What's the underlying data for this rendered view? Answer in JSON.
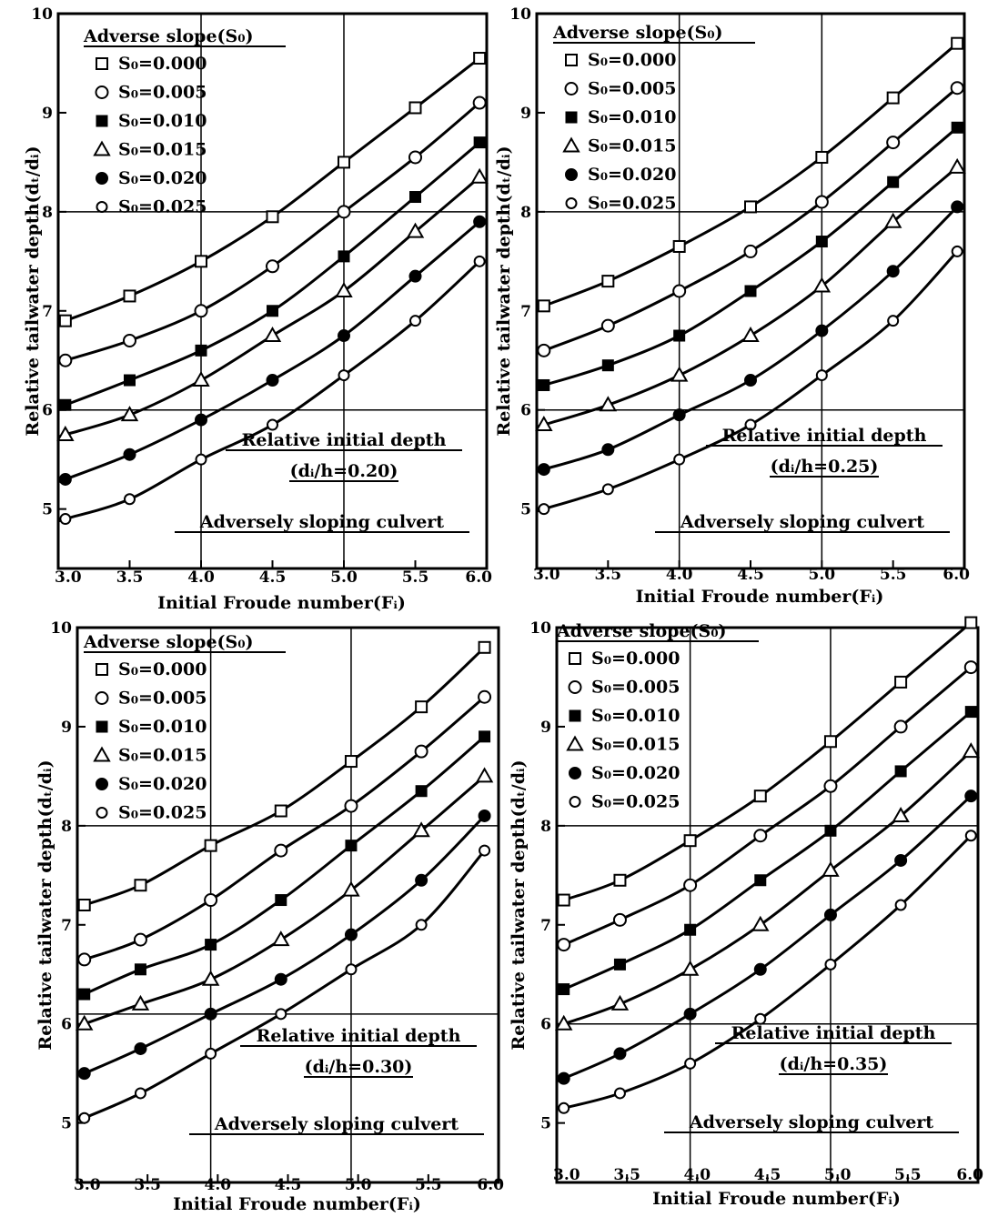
{
  "chart_data": [
    {
      "type": "line",
      "legend_title": "Adverse slope(S₀)",
      "legend_placement": "top-left",
      "box_title": "Relative initial depth",
      "box_subtitle": "(dᵢ/h=0.20)",
      "footer": "Adversely sloping culvert",
      "xlabel": "Initial Froude number(Fᵢ)",
      "ylabel": "Relative tailwater depth(dₜ/dᵢ)",
      "xlim": [
        3.0,
        6.0
      ],
      "ylim": [
        4.4,
        10.0
      ],
      "xticks": [
        "3.0",
        "3.5",
        "4.0",
        "4.5",
        "5.0",
        "5.5",
        "6.0"
      ],
      "yticks": [
        "5",
        "6",
        "7",
        "8",
        "9",
        "10"
      ],
      "grid": {
        "vertical": [
          4.0,
          5.0
        ],
        "horizontal": [
          6.0,
          8.0
        ]
      },
      "x": [
        3.05,
        3.5,
        4.0,
        4.5,
        5.0,
        5.5,
        5.95
      ],
      "series": [
        {
          "name": "S₀=0.000",
          "marker": "square-open",
          "values": [
            6.9,
            7.15,
            7.5,
            7.95,
            8.5,
            9.05,
            9.55
          ]
        },
        {
          "name": "S₀=0.005",
          "marker": "circle-open",
          "values": [
            6.5,
            6.7,
            7.0,
            7.45,
            8.0,
            8.55,
            9.1
          ]
        },
        {
          "name": "S₀=0.010",
          "marker": "square-filled",
          "values": [
            6.05,
            6.3,
            6.6,
            7.0,
            7.55,
            8.15,
            8.7
          ]
        },
        {
          "name": "S₀=0.015",
          "marker": "triangle-open",
          "values": [
            5.75,
            5.95,
            6.3,
            6.75,
            7.2,
            7.8,
            8.35
          ]
        },
        {
          "name": "S₀=0.020",
          "marker": "circle-filled",
          "values": [
            5.3,
            5.55,
            5.9,
            6.3,
            6.75,
            7.35,
            7.9
          ]
        },
        {
          "name": "S₀=0.025",
          "marker": "circle-open-small",
          "values": [
            4.9,
            5.1,
            5.5,
            5.85,
            6.35,
            6.9,
            7.5
          ]
        }
      ]
    },
    {
      "type": "line",
      "legend_title": "Adverse slope(S₀)",
      "legend_placement": "top-left",
      "box_title": "Relative initial depth",
      "box_subtitle": "(dᵢ/h=0.25)",
      "footer": "Adversely sloping culvert",
      "xlabel": "Initial Froude number(Fᵢ)",
      "ylabel": "Relative tailwater depth(dₜ/dᵢ)",
      "xlim": [
        3.0,
        6.0
      ],
      "ylim": [
        4.4,
        10.0
      ],
      "xticks": [
        "3.0",
        "3.5",
        "4.0",
        "4.5",
        "5.0",
        "5.5",
        "6.0"
      ],
      "yticks": [
        "5",
        "6",
        "7",
        "8",
        "9",
        "10"
      ],
      "grid": {
        "vertical": [
          4.0,
          5.0
        ],
        "horizontal": [
          6.0,
          8.0
        ]
      },
      "x": [
        3.05,
        3.5,
        4.0,
        4.5,
        5.0,
        5.5,
        5.95
      ],
      "series": [
        {
          "name": "S₀=0.000",
          "marker": "square-open",
          "values": [
            7.05,
            7.3,
            7.65,
            8.05,
            8.55,
            9.15,
            9.7
          ]
        },
        {
          "name": "S₀=0.005",
          "marker": "circle-open",
          "values": [
            6.6,
            6.85,
            7.2,
            7.6,
            8.1,
            8.7,
            9.25
          ]
        },
        {
          "name": "S₀=0.010",
          "marker": "square-filled",
          "values": [
            6.25,
            6.45,
            6.75,
            7.2,
            7.7,
            8.3,
            8.85
          ]
        },
        {
          "name": "S₀=0.015",
          "marker": "triangle-open",
          "values": [
            5.85,
            6.05,
            6.35,
            6.75,
            7.25,
            7.9,
            8.45
          ]
        },
        {
          "name": "S₀=0.020",
          "marker": "circle-filled",
          "values": [
            5.4,
            5.6,
            5.95,
            6.3,
            6.8,
            7.4,
            8.05
          ]
        },
        {
          "name": "S₀=0.025",
          "marker": "circle-open-small",
          "values": [
            5.0,
            5.2,
            5.5,
            5.85,
            6.35,
            6.9,
            7.6
          ]
        }
      ]
    },
    {
      "type": "line",
      "legend_title": "Adverse slope(S₀)",
      "legend_placement": "top-left",
      "box_title": "Relative initial depth",
      "box_subtitle": "(dᵢ/h=0.30)",
      "footer": "Adversely sloping culvert",
      "xlabel": "Initial Froude number(Fᵢ)",
      "ylabel": "Relative tailwater depth(dₜ/dᵢ)",
      "xlim": [
        3.0,
        6.0
      ],
      "ylim": [
        4.4,
        10.0
      ],
      "xticks": [
        "3.0",
        "3.5",
        "4.0",
        "4.5",
        "5.0",
        "5.5",
        "6.0"
      ],
      "yticks": [
        "5",
        "6",
        "7",
        "8",
        "9",
        "10"
      ],
      "grid": {
        "vertical": [
          3.95,
          4.95
        ],
        "horizontal": [
          6.1,
          8.0
        ]
      },
      "x": [
        3.05,
        3.45,
        3.95,
        4.45,
        4.95,
        5.45,
        5.9
      ],
      "series": [
        {
          "name": "S₀=0.000",
          "marker": "square-open",
          "values": [
            7.2,
            7.4,
            7.8,
            8.15,
            8.65,
            9.2,
            9.8
          ]
        },
        {
          "name": "S₀=0.005",
          "marker": "circle-open",
          "values": [
            6.65,
            6.85,
            7.25,
            7.75,
            8.2,
            8.75,
            9.3
          ]
        },
        {
          "name": "S₀=0.010",
          "marker": "square-filled",
          "values": [
            6.3,
            6.55,
            6.8,
            7.25,
            7.8,
            8.35,
            8.9
          ]
        },
        {
          "name": "S₀=0.015",
          "marker": "triangle-open",
          "values": [
            6.0,
            6.2,
            6.45,
            6.85,
            7.35,
            7.95,
            8.5
          ]
        },
        {
          "name": "S₀=0.020",
          "marker": "circle-filled",
          "values": [
            5.5,
            5.75,
            6.1,
            6.45,
            6.9,
            7.45,
            8.1
          ]
        },
        {
          "name": "S₀=0.025",
          "marker": "circle-open-small",
          "values": [
            5.05,
            5.3,
            5.7,
            6.1,
            6.55,
            7.0,
            7.75
          ]
        }
      ]
    },
    {
      "type": "line",
      "legend_title": "Adverse slope(S₀)",
      "legend_placement": "top-left",
      "box_title": "Relative initial depth",
      "box_subtitle": "(dᵢ/h=0.35)",
      "footer": "Adversely sloping culvert",
      "xlabel": "Initial Froude number(Fᵢ)",
      "ylabel": "Relative tailwater depth(dₜ/dᵢ)",
      "xlim": [
        3.0,
        6.0
      ],
      "ylim": [
        4.4,
        10.0
      ],
      "xticks": [
        "3.0",
        "3.5",
        "4.0",
        "4.5",
        "5.0",
        "5.5",
        "6.0"
      ],
      "yticks": [
        "5",
        "6",
        "7",
        "8",
        "9",
        "10"
      ],
      "grid": {
        "vertical": [
          3.95,
          4.95
        ],
        "horizontal": [
          6.0,
          8.0
        ]
      },
      "x": [
        3.05,
        3.45,
        3.95,
        4.45,
        4.95,
        5.45,
        5.95
      ],
      "series": [
        {
          "name": "S₀=0.000",
          "marker": "square-open",
          "values": [
            7.25,
            7.45,
            7.85,
            8.3,
            8.85,
            9.45,
            10.05
          ]
        },
        {
          "name": "S₀=0.005",
          "marker": "circle-open",
          "values": [
            6.8,
            7.05,
            7.4,
            7.9,
            8.4,
            9.0,
            9.6
          ]
        },
        {
          "name": "S₀=0.010",
          "marker": "square-filled",
          "values": [
            6.35,
            6.6,
            6.95,
            7.45,
            7.95,
            8.55,
            9.15
          ]
        },
        {
          "name": "S₀=0.015",
          "marker": "triangle-open",
          "values": [
            6.0,
            6.2,
            6.55,
            7.0,
            7.55,
            8.1,
            8.75
          ]
        },
        {
          "name": "S₀=0.020",
          "marker": "circle-filled",
          "values": [
            5.45,
            5.7,
            6.1,
            6.55,
            7.1,
            7.65,
            8.3
          ]
        },
        {
          "name": "S₀=0.025",
          "marker": "circle-open-small",
          "values": [
            5.15,
            5.3,
            5.6,
            6.05,
            6.6,
            7.2,
            7.9
          ]
        }
      ]
    }
  ]
}
